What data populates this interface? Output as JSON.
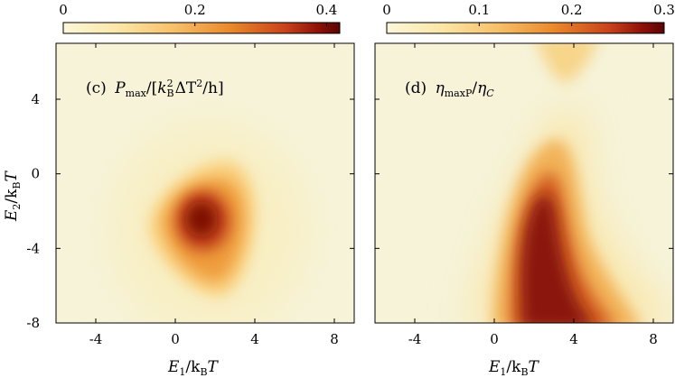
{
  "chart_data": [
    {
      "panel": "c",
      "type": "heatmap",
      "label": "(c) P_max/[k_B^2 ΔT^2/h]",
      "label_parts": {
        "prefix": "(c)",
        "symbol": "P",
        "symbol_sub": "max",
        "div": "/[",
        "k": "k",
        "k_sub": "B",
        "k_sup": "2",
        "delta": "ΔT",
        "delta_sup": "2",
        "tail": "/h]"
      },
      "colorbar": {
        "range": [
          0,
          0.42
        ],
        "ticks": [
          "0",
          "0.2",
          "0.4"
        ],
        "tick_values": [
          0,
          0.2,
          0.4
        ]
      },
      "xlabel": "E1/kBT",
      "ylabel": "E2/kBT",
      "xlim": [
        -6,
        9
      ],
      "ylim": [
        -8,
        7
      ],
      "xticks": [
        "-4",
        "0",
        "4",
        "8"
      ],
      "yticks": [
        "4",
        "0",
        "-4",
        "-8"
      ],
      "peak": {
        "x": 1.5,
        "y": -2.5,
        "value": 0.42
      },
      "background_value": 0.04,
      "colormap": [
        "#fbf7da",
        "#fbe6a6",
        "#f7c06a",
        "#ea8a2c",
        "#c9431b",
        "#8f1208",
        "#5a0404"
      ]
    },
    {
      "panel": "d",
      "type": "heatmap",
      "label": "(d) η_maxP/η_C",
      "label_parts": {
        "prefix": "(d)",
        "symbol": "η",
        "symbol_sub": "maxP",
        "div": "/",
        "symbol2": "η",
        "symbol2_sub": "C"
      },
      "colorbar": {
        "range": [
          0,
          0.3
        ],
        "ticks": [
          "0",
          "0.1",
          "0.2",
          "0.3"
        ],
        "tick_values": [
          0,
          0.1,
          0.2,
          0.3
        ]
      },
      "xlabel": "E1/kBT",
      "xlim": [
        -6,
        9
      ],
      "ylim": [
        -8,
        7
      ],
      "xticks": [
        "-4",
        "0",
        "4",
        "8"
      ],
      "colormap": [
        "#fbf7da",
        "#fbe6a6",
        "#f7c06a",
        "#ea8a2c",
        "#c9431b",
        "#8f1208",
        "#5a0404"
      ]
    }
  ],
  "axes_text": {
    "xlabel_main": "E",
    "xlabel_sub": "1",
    "xlabel_tail": "/k",
    "xlabel_tail_sub": "B",
    "xlabel_T": "T",
    "ylabel_main": "E",
    "ylabel_sub": "2",
    "ylabel_tail": "/k",
    "ylabel_tail_sub": "B",
    "ylabel_T": "T"
  }
}
